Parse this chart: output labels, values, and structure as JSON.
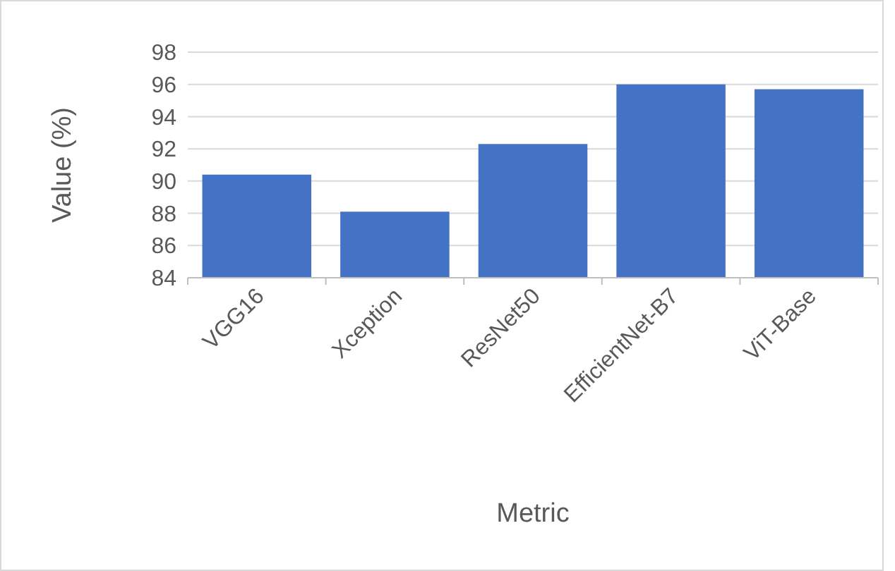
{
  "chart_data": {
    "type": "bar",
    "xlabel": "Metric",
    "ylabel": "Value (%)",
    "categories": [
      "VGG16",
      "Xception",
      "ResNet50",
      "EfficientNet-B7",
      "ViT-Base"
    ],
    "values": [
      90.4,
      88.1,
      92.3,
      96.0,
      95.7
    ],
    "color": "#4472c4",
    "ylim": [
      84,
      98
    ],
    "yticks": [
      84,
      86,
      88,
      90,
      92,
      94,
      96,
      98
    ],
    "grid": "y"
  }
}
